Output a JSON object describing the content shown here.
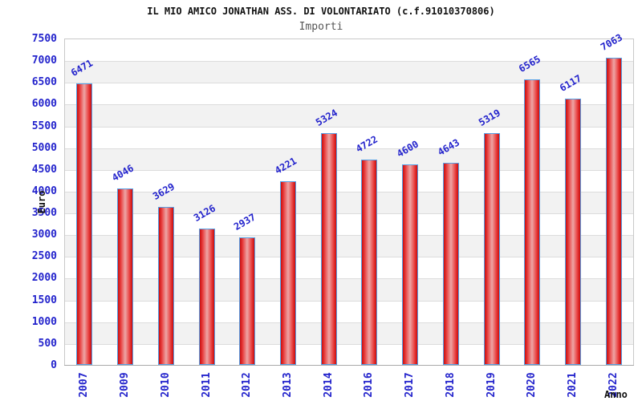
{
  "title": "IL MIO AMICO JONATHAN ASS. DI VOLONTARIATO (c.f.91010370806)",
  "subtitle": "Importi",
  "chart_data": {
    "type": "bar",
    "title": "IL MIO AMICO JONATHAN ASS. DI VOLONTARIATO (c.f.91010370806)",
    "subtitle": "Importi",
    "xlabel": "Anno",
    "ylabel": "Euro",
    "categories": [
      "2007",
      "2009",
      "2010",
      "2011",
      "2012",
      "2013",
      "2014",
      "2016",
      "2017",
      "2018",
      "2019",
      "2020",
      "2021",
      "2022"
    ],
    "values": [
      6471,
      4046,
      3629,
      3126,
      2937,
      4221,
      5324,
      4722,
      4600,
      4643,
      5319,
      6565,
      6117,
      7063
    ],
    "ylim": [
      0,
      7500
    ],
    "ytick_step": 500,
    "grid": true,
    "legend": "none",
    "colors": {
      "label_blue": "#2323cc",
      "bar_edge": "#c90d0d",
      "bar_mid": "#eda6a6",
      "bar_border": "#55a0e6",
      "band_gray": "#f2f2f2",
      "grid_line": "#dcdcdc",
      "plot_border": "#c9c9c9",
      "axis_line": "#aaaaaa",
      "title_color": "#111111",
      "subtitle_color": "#555555"
    }
  }
}
